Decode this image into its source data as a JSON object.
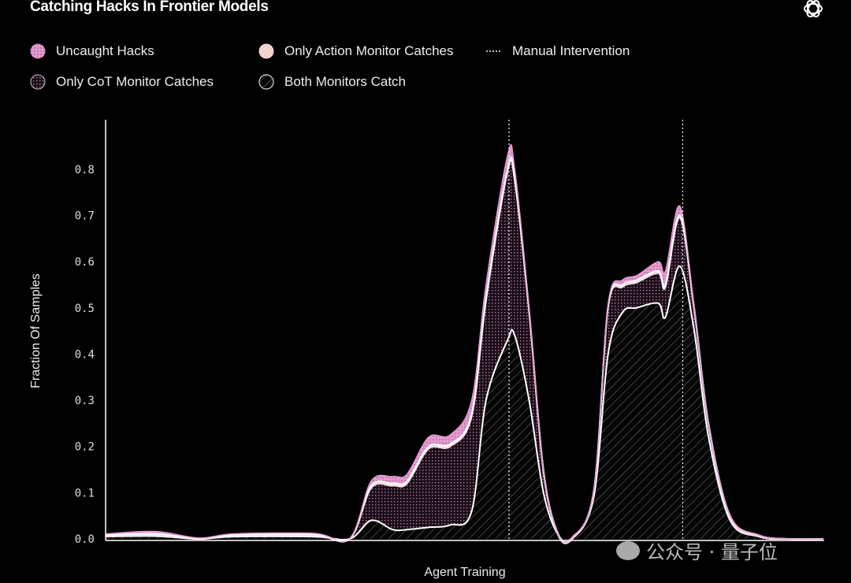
{
  "chart_data": {
    "type": "area",
    "stacked": true,
    "title": "Catching Hacks In Frontier Models",
    "xlabel": "Agent Training",
    "ylabel": "Fraction Of Samples",
    "ylim": [
      0,
      0.9
    ],
    "yticks": [
      "0.0",
      "0.1",
      "0.2",
      "0.3",
      "0.4",
      "0.5",
      "0.6",
      "0.7",
      "0.8"
    ],
    "grid": false,
    "legend_position": "top-left",
    "x": [
      0,
      7,
      13,
      18,
      29,
      34,
      37,
      40,
      42,
      45,
      48,
      51,
      53,
      56,
      57,
      59,
      61,
      63,
      65,
      68,
      70,
      72,
      74,
      77,
      78,
      80,
      82,
      84,
      87,
      91,
      95,
      100
    ],
    "series": [
      {
        "name": "Both Monitors Catch",
        "color": "#ffffff",
        "pattern": "hatch",
        "values": [
          0.005,
          0.006,
          0,
          0.005,
          0.005,
          0,
          0.04,
          0.02,
          0.02,
          0.025,
          0.03,
          0.06,
          0.3,
          0.43,
          0.44,
          0.3,
          0.1,
          0.01,
          0,
          0.09,
          0.4,
          0.49,
          0.5,
          0.51,
          0.48,
          0.59,
          0.45,
          0.22,
          0.04,
          0.005,
          0,
          0
        ]
      },
      {
        "name": "Only CoT Monitor Catches",
        "color": "#e8a6d6",
        "pattern": "grid-dots",
        "values": [
          0,
          0.002,
          0,
          0.002,
          0.003,
          0,
          0.07,
          0.095,
          0.1,
          0.17,
          0.17,
          0.205,
          0.215,
          0.365,
          0.335,
          0.19,
          0.045,
          0,
          0,
          0.01,
          0.1,
          0.055,
          0.055,
          0.065,
          0.065,
          0.105,
          0.045,
          0.025,
          0.005,
          0,
          0,
          0
        ]
      },
      {
        "name": "Only Action Monitor Catches",
        "color": "#f6d8d6",
        "pattern": "diagonal",
        "values": [
          0.003,
          0.003,
          0,
          0.002,
          0.002,
          0,
          0.005,
          0.005,
          0.005,
          0.005,
          0.005,
          0.005,
          0.005,
          0.005,
          0.005,
          0.005,
          0.005,
          0.003,
          0.003,
          0.003,
          0.004,
          0.005,
          0.005,
          0.005,
          0.005,
          0.005,
          0.005,
          0.005,
          0.005,
          0.003,
          0,
          0
        ]
      },
      {
        "name": "Uncaught Hacks",
        "color": "#e49bd0",
        "pattern": "dots",
        "values": [
          0.003,
          0.005,
          0.002,
          0.002,
          0.002,
          0.001,
          0.01,
          0.015,
          0.015,
          0.02,
          0.02,
          0.03,
          0.03,
          0.03,
          0.02,
          0.005,
          0,
          0,
          0,
          0,
          0.003,
          0.01,
          0.01,
          0.02,
          0.03,
          0.02,
          0,
          0,
          0,
          0,
          0,
          0
        ]
      }
    ],
    "annotations": [
      {
        "type": "vline",
        "name": "Manual Intervention",
        "style": "dotted",
        "x": 56.2
      },
      {
        "type": "vline",
        "name": "Manual Intervention",
        "style": "dotted",
        "x": 80.4
      }
    ]
  },
  "legend": {
    "uncaught": "Uncaught Hacks",
    "action": "Only Action Monitor Catches",
    "manual": "Manual Intervention",
    "cot": "Only CoT Monitor Catches",
    "both": "Both Monitors Catch"
  },
  "watermark": "公众号 · 量子位"
}
